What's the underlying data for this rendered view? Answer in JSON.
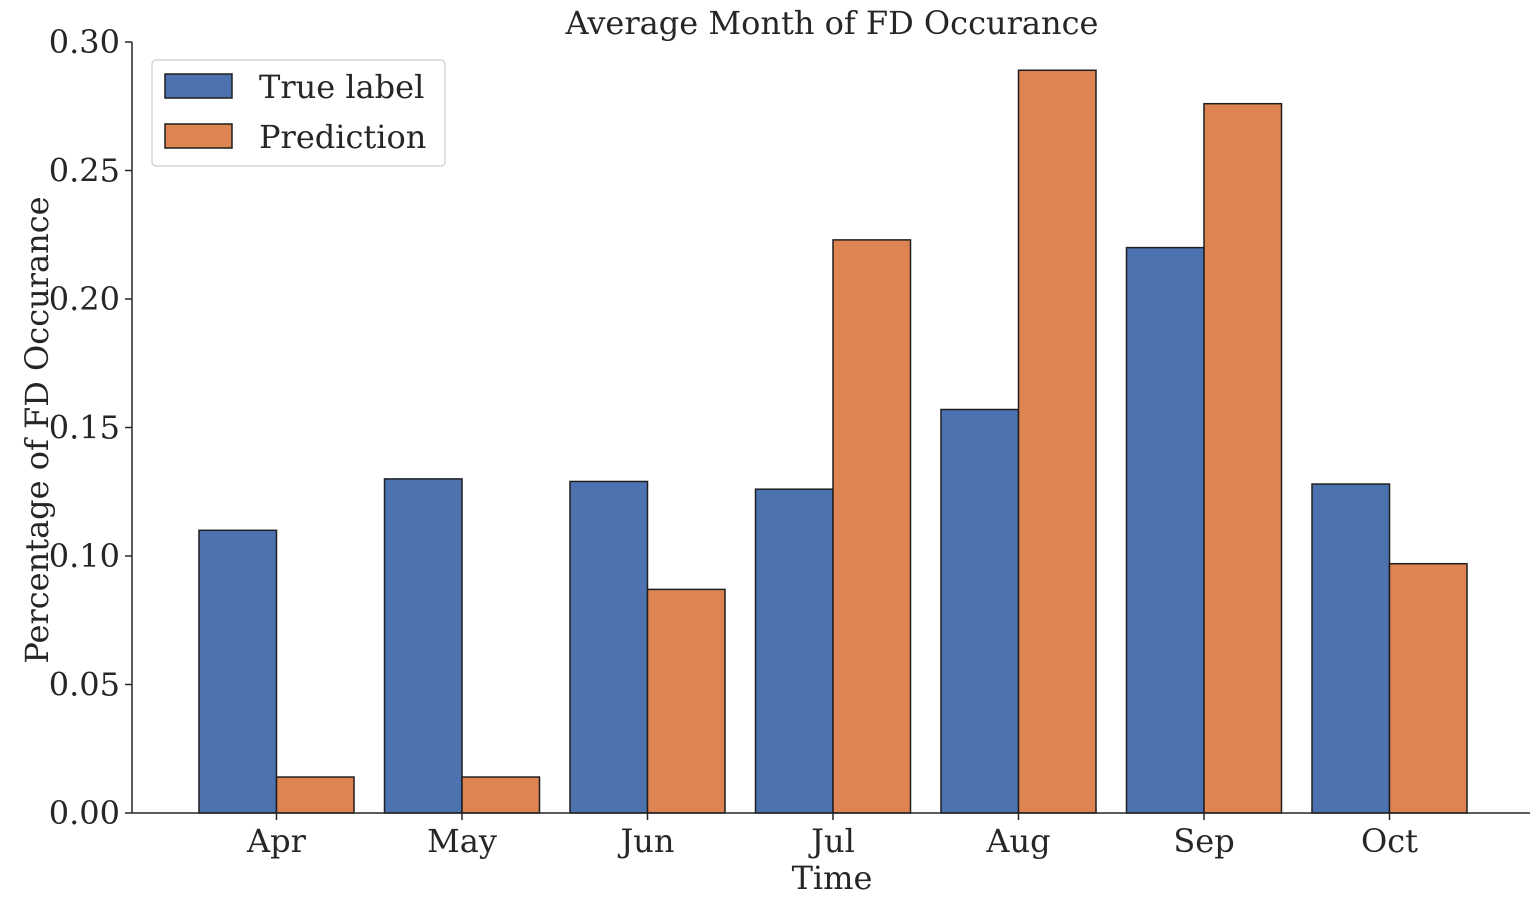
{
  "chart_data": {
    "type": "bar",
    "title": "Average Month of FD Occurance",
    "xlabel": "Time",
    "ylabel": "Percentage of FD Occurance",
    "categories": [
      "Apr",
      "May",
      "Jun",
      "Jul",
      "Aug",
      "Sep",
      "Oct"
    ],
    "series": [
      {
        "name": "True label",
        "color": "#4c72b0",
        "values": [
          0.11,
          0.13,
          0.129,
          0.126,
          0.157,
          0.22,
          0.128
        ]
      },
      {
        "name": "Prediction",
        "color": "#dd8452",
        "values": [
          0.014,
          0.014,
          0.087,
          0.223,
          0.289,
          0.276,
          0.097
        ]
      }
    ],
    "ylim": [
      0,
      0.3
    ],
    "yticks": [
      "0.00",
      "0.05",
      "0.10",
      "0.15",
      "0.20",
      "0.25",
      "0.30"
    ],
    "grid": false,
    "legend_position": "top-left"
  }
}
